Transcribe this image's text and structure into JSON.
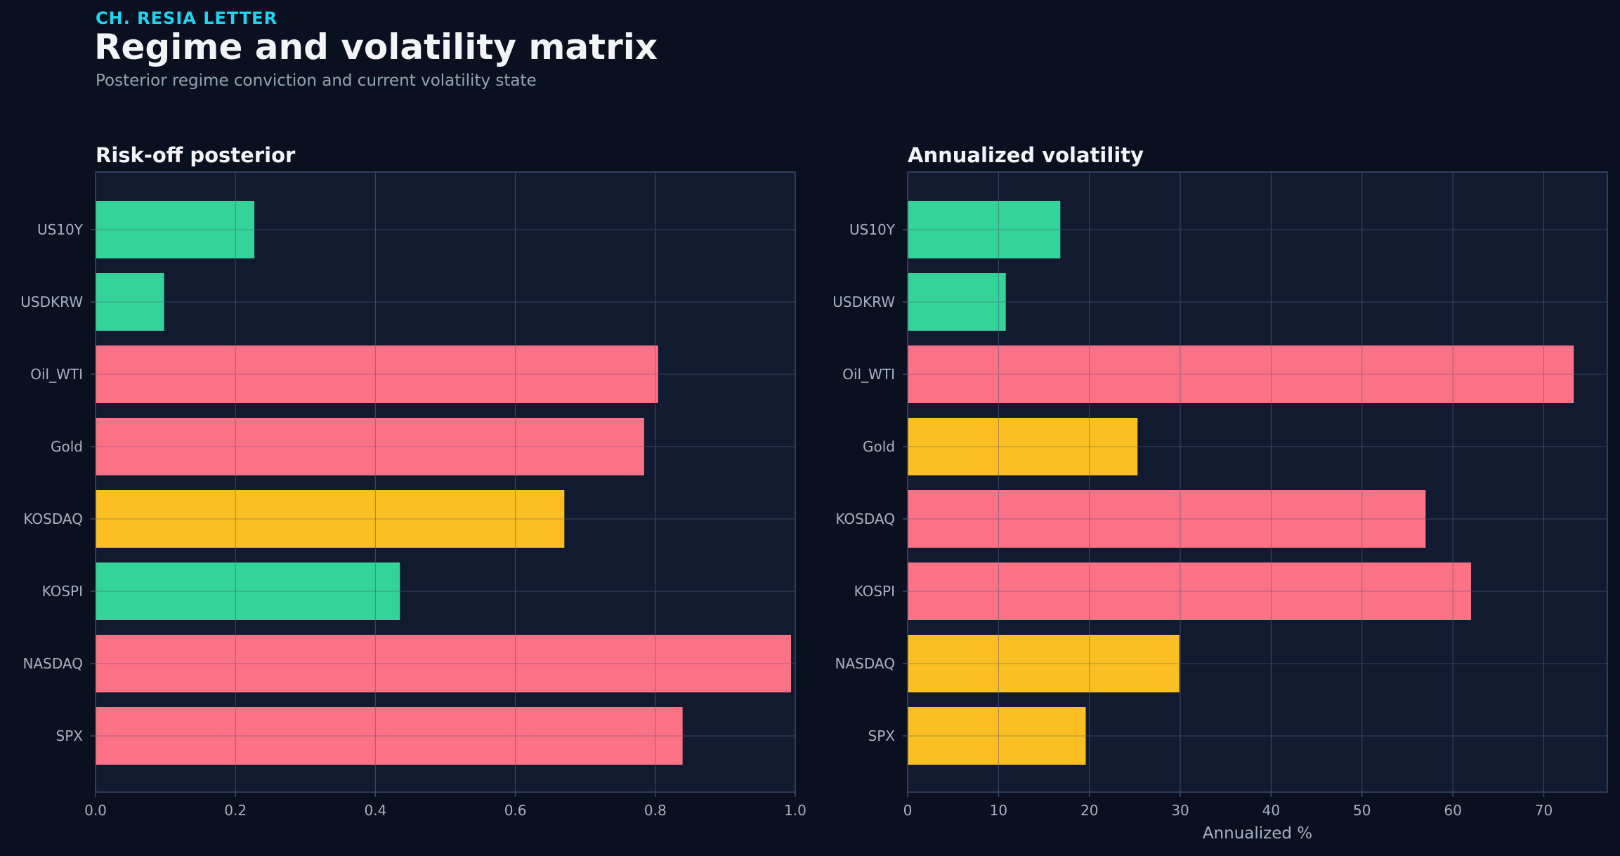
{
  "header": {
    "eyebrow": "CH. RESIA LETTER",
    "title": "Regime and volatility matrix",
    "subtitle": "Posterior regime conviction and current volatility state"
  },
  "colors": {
    "background": "#0b1020",
    "panel": "#121a2f",
    "frame": "#3b4a6b",
    "grid": "#2a3550",
    "tick": "#a7b0c8",
    "panel_title": "#f3f4f8",
    "green": "#34d399",
    "red": "#fb7185",
    "amber": "#fbbf24"
  },
  "chart_data": [
    {
      "type": "bar",
      "orientation": "horizontal",
      "title": "Risk-off posterior",
      "xlabel": "",
      "xlim": [
        0,
        1
      ],
      "xticks": [
        0.0,
        0.2,
        0.4,
        0.6,
        0.8,
        1.0
      ],
      "xtick_labels": [
        "0.0",
        "0.2",
        "0.4",
        "0.6",
        "0.8",
        "1.0"
      ],
      "grid": true,
      "categories": [
        "US10Y",
        "USDKRW",
        "Oil_WTI",
        "Gold",
        "KOSDAQ",
        "KOSPI",
        "NASDAQ",
        "SPX"
      ],
      "values": [
        0.227,
        0.098,
        0.804,
        0.784,
        0.67,
        0.435,
        0.994,
        0.839
      ],
      "bar_colors": [
        "green",
        "green",
        "red",
        "red",
        "amber",
        "green",
        "red",
        "red"
      ]
    },
    {
      "type": "bar",
      "orientation": "horizontal",
      "title": "Annualized volatility",
      "xlabel": "Annualized %",
      "xlim": [
        0,
        77
      ],
      "xticks": [
        0,
        10,
        20,
        30,
        40,
        50,
        60,
        70
      ],
      "xtick_labels": [
        "0",
        "10",
        "20",
        "30",
        "40",
        "50",
        "60",
        "70"
      ],
      "grid": true,
      "categories": [
        "US10Y",
        "USDKRW",
        "Oil_WTI",
        "Gold",
        "KOSDAQ",
        "KOSPI",
        "NASDAQ",
        "SPX"
      ],
      "values": [
        16.8,
        10.8,
        73.3,
        25.3,
        57.0,
        62.0,
        29.9,
        19.6
      ],
      "bar_colors": [
        "green",
        "green",
        "red",
        "amber",
        "red",
        "red",
        "amber",
        "amber"
      ]
    }
  ]
}
